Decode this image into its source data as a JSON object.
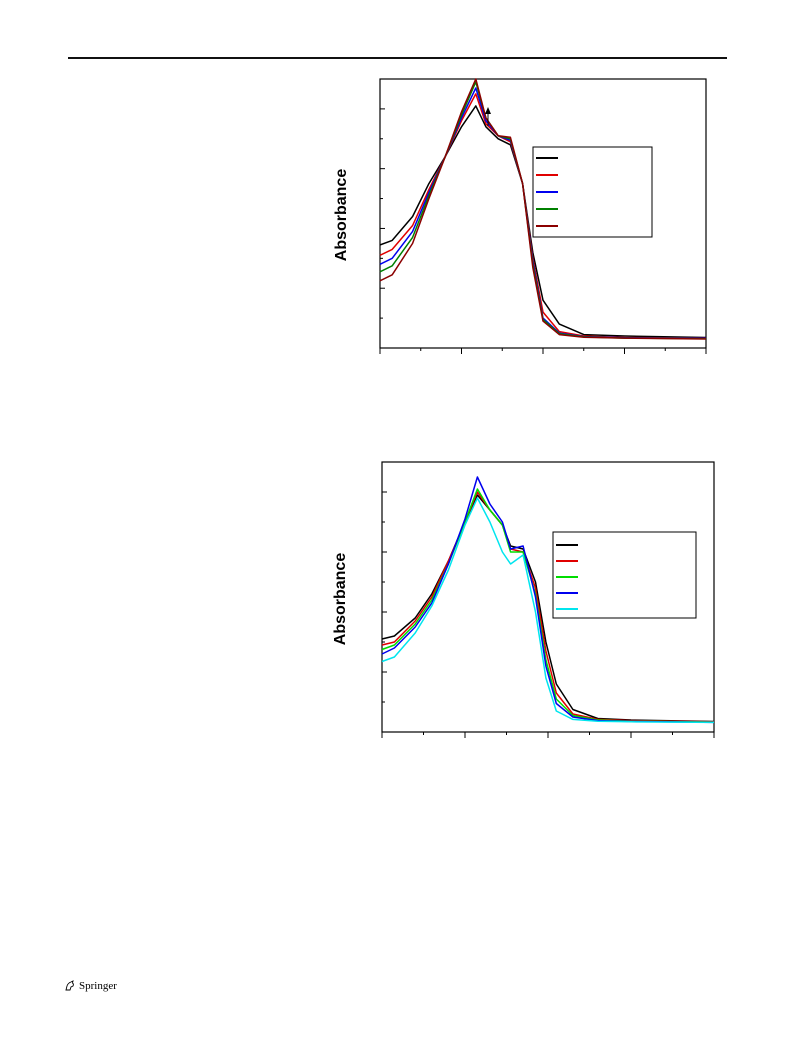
{
  "page": {
    "publisher": "Springer",
    "publisher_icon": "springer-horse-icon"
  },
  "chart_data": [
    {
      "type": "line",
      "title": "",
      "xlabel": "",
      "ylabel": "Absorbance",
      "xlim": [
        0,
        8
      ],
      "ylim": [
        0,
        9
      ],
      "grid": false,
      "legend_placement": "top-right",
      "legend_text_visible": false,
      "annotation": "upward arrow near main peak",
      "series": [
        {
          "color": "#000000",
          "points": [
            [
              0,
              3.45
            ],
            [
              0.3,
              3.6
            ],
            [
              0.8,
              4.4
            ],
            [
              1.2,
              5.5
            ],
            [
              1.6,
              6.4
            ],
            [
              2.0,
              7.4
            ],
            [
              2.35,
              8.1
            ],
            [
              2.6,
              7.4
            ],
            [
              2.9,
              7.0
            ],
            [
              3.2,
              6.8
            ],
            [
              3.5,
              5.5
            ],
            [
              3.75,
              3.2
            ],
            [
              4.0,
              1.6
            ],
            [
              4.4,
              0.8
            ],
            [
              5.0,
              0.45
            ],
            [
              6.0,
              0.4
            ],
            [
              8.0,
              0.35
            ]
          ]
        },
        {
          "color": "#e00000",
          "points": [
            [
              0,
              3.1
            ],
            [
              0.3,
              3.3
            ],
            [
              0.8,
              4.1
            ],
            [
              1.2,
              5.3
            ],
            [
              1.6,
              6.4
            ],
            [
              2.0,
              7.6
            ],
            [
              2.35,
              8.5
            ],
            [
              2.6,
              7.5
            ],
            [
              2.9,
              7.1
            ],
            [
              3.2,
              6.9
            ],
            [
              3.5,
              5.5
            ],
            [
              3.75,
              3.0
            ],
            [
              4.0,
              1.2
            ],
            [
              4.4,
              0.55
            ],
            [
              5.0,
              0.4
            ],
            [
              6.0,
              0.35
            ],
            [
              8.0,
              0.33
            ]
          ]
        },
        {
          "color": "#0000ee",
          "points": [
            [
              0,
              2.8
            ],
            [
              0.3,
              3.0
            ],
            [
              0.8,
              3.9
            ],
            [
              1.2,
              5.2
            ],
            [
              1.6,
              6.4
            ],
            [
              2.0,
              7.7
            ],
            [
              2.35,
              8.7
            ],
            [
              2.6,
              7.6
            ],
            [
              2.9,
              7.1
            ],
            [
              3.2,
              6.95
            ],
            [
              3.5,
              5.5
            ],
            [
              3.75,
              2.9
            ],
            [
              4.0,
              1.0
            ],
            [
              4.4,
              0.5
            ],
            [
              5.0,
              0.38
            ],
            [
              6.0,
              0.34
            ],
            [
              8.0,
              0.32
            ]
          ]
        },
        {
          "color": "#008000",
          "points": [
            [
              0,
              2.55
            ],
            [
              0.3,
              2.75
            ],
            [
              0.8,
              3.7
            ],
            [
              1.2,
              5.1
            ],
            [
              1.6,
              6.4
            ],
            [
              2.0,
              7.8
            ],
            [
              2.35,
              8.9
            ],
            [
              2.6,
              7.7
            ],
            [
              2.9,
              7.1
            ],
            [
              3.2,
              7.0
            ],
            [
              3.5,
              5.5
            ],
            [
              3.75,
              2.8
            ],
            [
              4.0,
              0.95
            ],
            [
              4.4,
              0.48
            ],
            [
              5.0,
              0.37
            ],
            [
              6.0,
              0.33
            ],
            [
              8.0,
              0.31
            ]
          ]
        },
        {
          "color": "#8b0000",
          "points": [
            [
              0,
              2.25
            ],
            [
              0.3,
              2.45
            ],
            [
              0.8,
              3.5
            ],
            [
              1.2,
              5.0
            ],
            [
              1.6,
              6.4
            ],
            [
              2.0,
              7.9
            ],
            [
              2.35,
              9.0
            ],
            [
              2.6,
              7.7
            ],
            [
              2.9,
              7.1
            ],
            [
              3.2,
              7.05
            ],
            [
              3.5,
              5.5
            ],
            [
              3.75,
              2.7
            ],
            [
              4.0,
              0.9
            ],
            [
              4.4,
              0.45
            ],
            [
              5.0,
              0.36
            ],
            [
              6.0,
              0.33
            ],
            [
              8.0,
              0.3
            ]
          ]
        }
      ]
    },
    {
      "type": "line",
      "title": "",
      "xlabel": "",
      "ylabel": "Absorbance",
      "xlim": [
        0,
        8
      ],
      "ylim": [
        0,
        9
      ],
      "grid": false,
      "legend_placement": "top-right",
      "legend_text_visible": false,
      "series": [
        {
          "color": "#000000",
          "points": [
            [
              0,
              3.1
            ],
            [
              0.3,
              3.2
            ],
            [
              0.8,
              3.8
            ],
            [
              1.2,
              4.6
            ],
            [
              1.6,
              5.7
            ],
            [
              2.0,
              7.0
            ],
            [
              2.3,
              7.9
            ],
            [
              2.6,
              7.4
            ],
            [
              2.9,
              6.9
            ],
            [
              3.1,
              6.2
            ],
            [
              3.4,
              6.1
            ],
            [
              3.7,
              5.0
            ],
            [
              3.95,
              3.0
            ],
            [
              4.2,
              1.6
            ],
            [
              4.6,
              0.75
            ],
            [
              5.2,
              0.45
            ],
            [
              6.0,
              0.4
            ],
            [
              8.0,
              0.35
            ]
          ]
        },
        {
          "color": "#e00000",
          "points": [
            [
              0,
              2.9
            ],
            [
              0.3,
              3.0
            ],
            [
              0.8,
              3.7
            ],
            [
              1.2,
              4.5
            ],
            [
              1.6,
              5.7
            ],
            [
              2.0,
              7.0
            ],
            [
              2.3,
              8.0
            ],
            [
              2.6,
              7.4
            ],
            [
              2.9,
              6.9
            ],
            [
              3.1,
              6.1
            ],
            [
              3.4,
              6.0
            ],
            [
              3.7,
              4.8
            ],
            [
              3.95,
              2.7
            ],
            [
              4.2,
              1.3
            ],
            [
              4.6,
              0.6
            ],
            [
              5.2,
              0.42
            ],
            [
              6.0,
              0.38
            ],
            [
              8.0,
              0.34
            ]
          ]
        },
        {
          "color": "#00dd00",
          "points": [
            [
              0,
              2.75
            ],
            [
              0.3,
              2.9
            ],
            [
              0.8,
              3.6
            ],
            [
              1.2,
              4.4
            ],
            [
              1.6,
              5.6
            ],
            [
              2.0,
              7.0
            ],
            [
              2.3,
              8.1
            ],
            [
              2.6,
              7.4
            ],
            [
              2.9,
              6.9
            ],
            [
              3.1,
              6.0
            ],
            [
              3.4,
              6.0
            ],
            [
              3.7,
              4.6
            ],
            [
              3.95,
              2.4
            ],
            [
              4.2,
              1.1
            ],
            [
              4.6,
              0.55
            ],
            [
              5.2,
              0.4
            ],
            [
              6.0,
              0.36
            ],
            [
              8.0,
              0.33
            ]
          ]
        },
        {
          "color": "#0000ee",
          "points": [
            [
              0,
              2.6
            ],
            [
              0.3,
              2.8
            ],
            [
              0.8,
              3.5
            ],
            [
              1.2,
              4.3
            ],
            [
              1.6,
              5.6
            ],
            [
              2.0,
              7.1
            ],
            [
              2.3,
              8.5
            ],
            [
              2.6,
              7.6
            ],
            [
              2.9,
              7.0
            ],
            [
              3.1,
              6.1
            ],
            [
              3.4,
              6.2
            ],
            [
              3.7,
              4.5
            ],
            [
              3.95,
              2.2
            ],
            [
              4.2,
              0.95
            ],
            [
              4.6,
              0.5
            ],
            [
              5.2,
              0.38
            ],
            [
              6.0,
              0.35
            ],
            [
              8.0,
              0.32
            ]
          ]
        },
        {
          "color": "#00e5ee",
          "points": [
            [
              0,
              2.35
            ],
            [
              0.3,
              2.5
            ],
            [
              0.8,
              3.3
            ],
            [
              1.2,
              4.2
            ],
            [
              1.6,
              5.4
            ],
            [
              2.0,
              6.9
            ],
            [
              2.3,
              7.8
            ],
            [
              2.6,
              7.0
            ],
            [
              2.9,
              6.0
            ],
            [
              3.1,
              5.6
            ],
            [
              3.4,
              5.9
            ],
            [
              3.7,
              4.0
            ],
            [
              3.95,
              1.8
            ],
            [
              4.2,
              0.7
            ],
            [
              4.6,
              0.42
            ],
            [
              5.2,
              0.36
            ],
            [
              6.0,
              0.34
            ],
            [
              8.0,
              0.32
            ]
          ]
        }
      ]
    }
  ]
}
